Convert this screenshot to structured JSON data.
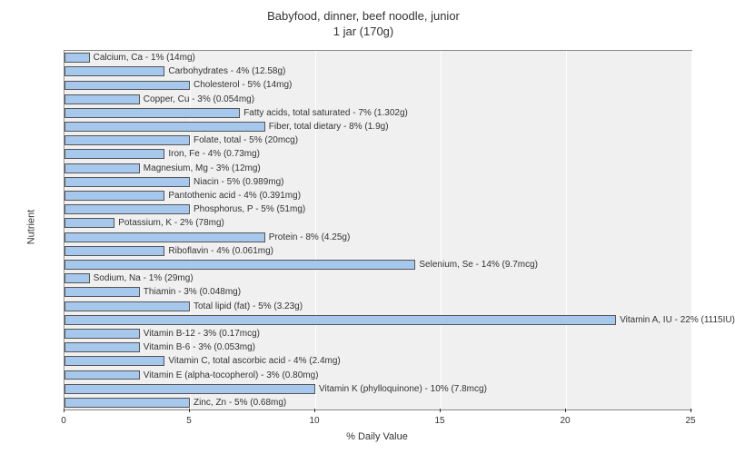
{
  "title_line1": "Babyfood, dinner, beef noodle, junior",
  "title_line2": "1 jar (170g)",
  "x_label": "% Daily Value",
  "y_label": "Nutrient",
  "chart": {
    "type": "bar",
    "orientation": "horizontal",
    "xlim": [
      0,
      25
    ],
    "xtick_step": 5,
    "xticks": [
      0,
      5,
      10,
      15,
      20,
      25
    ],
    "bar_color": "#a6c8ec",
    "bar_border_color": "#555555",
    "background_color": "#f0f0f0",
    "grid_color": "#ffffff",
    "bars": [
      {
        "label": "Calcium, Ca - 1% (14mg)",
        "value": 1
      },
      {
        "label": "Carbohydrates - 4% (12.58g)",
        "value": 4
      },
      {
        "label": "Cholesterol - 5% (14mg)",
        "value": 5
      },
      {
        "label": "Copper, Cu - 3% (0.054mg)",
        "value": 3
      },
      {
        "label": "Fatty acids, total saturated - 7% (1.302g)",
        "value": 7
      },
      {
        "label": "Fiber, total dietary - 8% (1.9g)",
        "value": 8
      },
      {
        "label": "Folate, total - 5% (20mcg)",
        "value": 5
      },
      {
        "label": "Iron, Fe - 4% (0.73mg)",
        "value": 4
      },
      {
        "label": "Magnesium, Mg - 3% (12mg)",
        "value": 3
      },
      {
        "label": "Niacin - 5% (0.989mg)",
        "value": 5
      },
      {
        "label": "Pantothenic acid - 4% (0.391mg)",
        "value": 4
      },
      {
        "label": "Phosphorus, P - 5% (51mg)",
        "value": 5
      },
      {
        "label": "Potassium, K - 2% (78mg)",
        "value": 2
      },
      {
        "label": "Protein - 8% (4.25g)",
        "value": 8
      },
      {
        "label": "Riboflavin - 4% (0.061mg)",
        "value": 4
      },
      {
        "label": "Selenium, Se - 14% (9.7mcg)",
        "value": 14
      },
      {
        "label": "Sodium, Na - 1% (29mg)",
        "value": 1
      },
      {
        "label": "Thiamin - 3% (0.048mg)",
        "value": 3
      },
      {
        "label": "Total lipid (fat) - 5% (3.23g)",
        "value": 5
      },
      {
        "label": "Vitamin A, IU - 22% (1115IU)",
        "value": 22
      },
      {
        "label": "Vitamin B-12 - 3% (0.17mcg)",
        "value": 3
      },
      {
        "label": "Vitamin B-6 - 3% (0.053mg)",
        "value": 3
      },
      {
        "label": "Vitamin C, total ascorbic acid - 4% (2.4mg)",
        "value": 4
      },
      {
        "label": "Vitamin E (alpha-tocopherol) - 3% (0.80mg)",
        "value": 3
      },
      {
        "label": "Vitamin K (phylloquinone) - 10% (7.8mcg)",
        "value": 10
      },
      {
        "label": "Zinc, Zn - 5% (0.68mg)",
        "value": 5
      }
    ]
  }
}
